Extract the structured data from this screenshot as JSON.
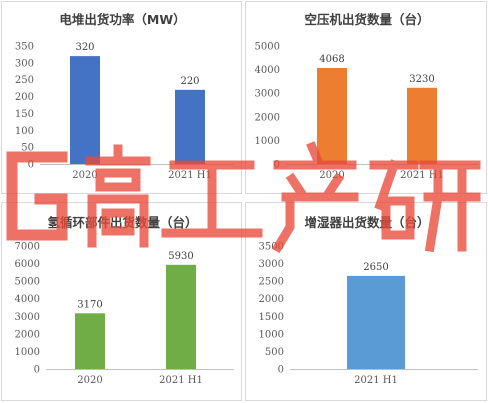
{
  "chart_data": [
    {
      "type": "bar",
      "title": "电堆出货功率（MW）",
      "categories": [
        "2020",
        "2021 H1"
      ],
      "values": [
        320,
        220
      ],
      "ylim": [
        0,
        350
      ],
      "yticks": [
        0,
        50,
        100,
        150,
        200,
        250,
        300,
        350
      ],
      "color": "#4472C4"
    },
    {
      "type": "bar",
      "title": "空压机出货数量（台）",
      "categories": [
        "2020",
        "2021 H1"
      ],
      "values": [
        4068,
        3230
      ],
      "ylim": [
        0,
        5000
      ],
      "yticks": [
        0,
        1000,
        2000,
        3000,
        4000,
        5000
      ],
      "color": "#ED7D31"
    },
    {
      "type": "bar",
      "title": "氢循环部件出货数量（台）",
      "categories": [
        "2020",
        "2021 H1"
      ],
      "values": [
        3170,
        5930
      ],
      "ylim": [
        0,
        7000
      ],
      "yticks": [
        0,
        1000,
        2000,
        3000,
        4000,
        5000,
        6000,
        7000
      ],
      "color": "#70AD47"
    },
    {
      "type": "bar",
      "title": "增湿器出货数量（台）",
      "categories": [
        "2021 H1"
      ],
      "values": [
        2650
      ],
      "ylim": [
        0,
        3500
      ],
      "yticks": [
        0,
        500,
        1000,
        1500,
        2000,
        2500,
        3000,
        3500
      ],
      "color": "#5B9BD5"
    }
  ],
  "watermark": {
    "text": "高工产研",
    "color": "#e84a3a"
  }
}
